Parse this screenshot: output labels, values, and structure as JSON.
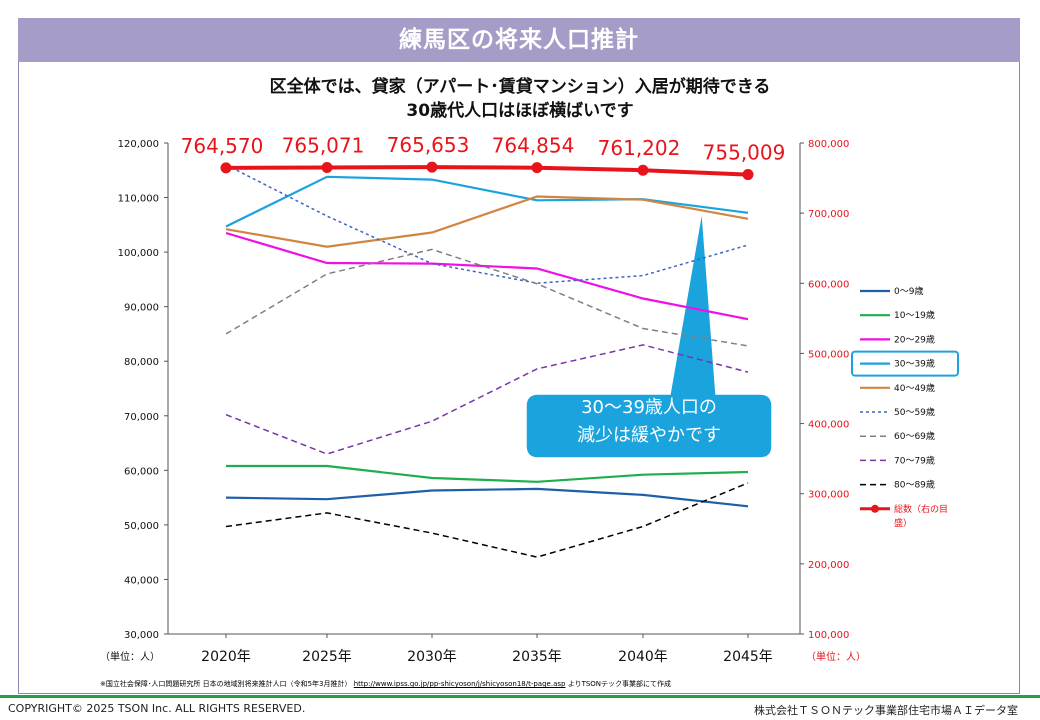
{
  "banner": {
    "title": "練馬区の将来人口推計"
  },
  "subtitle": {
    "line1": "区全体では、貸家（アパート･賃貸マンション）入居が期待できる",
    "line2": "30歳代人口はほぼ横ばいです"
  },
  "callout": {
    "line1": "30～39歳人口の",
    "line2": "減少は緩やかです"
  },
  "source": {
    "prefix": "※国立社会保障･人口問題研究所 日本の地域別将来推計人口（令和5年3月推計）",
    "link": "http://www.ipss.go.jp/pp-shicyoson/j/shicyoson18/t-page.asp",
    "suffix": "よりTSONテック事業部にて作成"
  },
  "footer": {
    "copyright": "COPYRIGHT© 2025 TSON Inc. ALL RIGHTS RESERVED.",
    "company": "株式会社ＴＳＯＮテック事業部住宅市場ＡＩデータ室"
  },
  "colors": {
    "banner": "#a79bc8",
    "total": "#e8141b",
    "highlight": "#1ba3dd",
    "footer_line": "#23a045"
  },
  "chart_data": {
    "type": "line",
    "categories": [
      "2020年",
      "2025年",
      "2030年",
      "2035年",
      "2040年",
      "2045年"
    ],
    "y_left": {
      "range": [
        30000,
        120000
      ],
      "ticks": [
        "30,000",
        "40,000",
        "50,000",
        "60,000",
        "70,000",
        "80,000",
        "90,000",
        "100,000",
        "110,000",
        "120,000"
      ],
      "unit_label": "（単位：人）"
    },
    "y_right": {
      "range": [
        100000,
        800000
      ],
      "ticks": [
        "100,000",
        "200,000",
        "300,000",
        "400,000",
        "500,000",
        "600,000",
        "700,000",
        "800,000"
      ],
      "unit_label": "（単位：人）"
    },
    "legend_position": "right",
    "grid": false,
    "series": [
      {
        "name": "0～9歳",
        "color": "#1f5fa8",
        "dash": "solid",
        "axis": "left",
        "values": [
          55000,
          54700,
          56300,
          56600,
          55500,
          53400
        ]
      },
      {
        "name": "10～19歳",
        "color": "#1fae4e",
        "dash": "solid",
        "axis": "left",
        "values": [
          60800,
          60800,
          58600,
          57900,
          59200,
          59700
        ]
      },
      {
        "name": "20～29歳",
        "color": "#ee10e6",
        "dash": "solid",
        "axis": "left",
        "values": [
          103500,
          98000,
          97900,
          97000,
          91500,
          87700
        ]
      },
      {
        "name": "30～39歳",
        "color": "#1ba3dd",
        "dash": "solid",
        "axis": "left",
        "values": [
          104700,
          113800,
          113300,
          109500,
          109700,
          107200
        ]
      },
      {
        "name": "40～49歳",
        "color": "#d08541",
        "dash": "solid",
        "axis": "left",
        "values": [
          104200,
          101000,
          103600,
          110200,
          109600,
          106100
        ]
      },
      {
        "name": "50～59歳",
        "color": "#3d64c0",
        "dash": "short",
        "axis": "left",
        "values": [
          116000,
          106600,
          97900,
          94300,
          95700,
          101300
        ]
      },
      {
        "name": "60～69歳",
        "color": "#808080",
        "dash": "dash",
        "axis": "left",
        "values": [
          85000,
          96000,
          100500,
          94200,
          86000,
          82800
        ]
      },
      {
        "name": "70～79歳",
        "color": "#7a35a8",
        "dash": "dash",
        "axis": "left",
        "values": [
          70200,
          63000,
          69000,
          78600,
          83000,
          78000
        ]
      },
      {
        "name": "80～89歳",
        "color": "#000000",
        "dash": "dash",
        "axis": "left",
        "values": [
          49700,
          52200,
          48500,
          44100,
          49700,
          57700
        ]
      },
      {
        "name": "総数（右の目盛）",
        "color": "#e8141b",
        "dash": "solid",
        "axis": "right",
        "marker": true,
        "values": [
          764570,
          765071,
          765653,
          764854,
          761202,
          755009
        ]
      }
    ],
    "data_labels": [
      "764,570",
      "765,071",
      "765,653",
      "764,854",
      "761,202",
      "755,009"
    ]
  }
}
